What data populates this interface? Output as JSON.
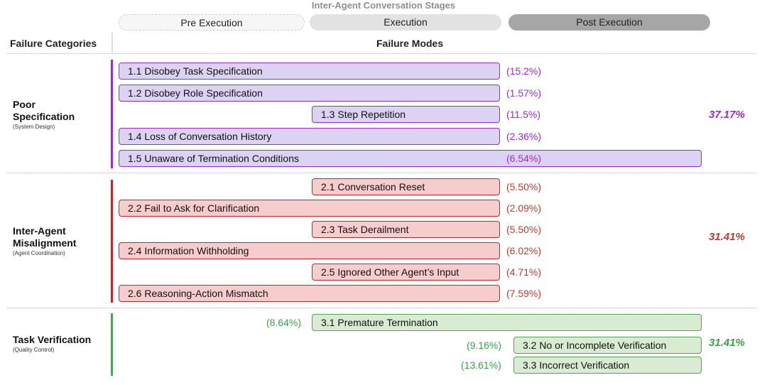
{
  "header": {
    "title": "Inter-Agent Conversation Stages",
    "stages": [
      "Pre Execution",
      "Execution",
      "Post Execution"
    ],
    "left_column": "Failure Categories",
    "right_column": "Failure Modes"
  },
  "colors": {
    "poor_specification": "#9a2bd6",
    "inter_agent_misalignment": "#c0272d",
    "task_verification": "#4ea35a"
  },
  "categories": [
    {
      "name_lines": [
        "Poor",
        "Specification"
      ],
      "subtitle": "(System Design)",
      "total": "37.17%",
      "modes": [
        {
          "label": "1.1 Disobey Task Specification",
          "percent": "(15.2%)"
        },
        {
          "label": "1.2 Disobey Role Specification",
          "percent": "(1.57%)"
        },
        {
          "label": "1.3 Step Repetition",
          "percent": "(11.5%)"
        },
        {
          "label": "1.4 Loss of Conversation History",
          "percent": "(2.36%)"
        },
        {
          "label": "1.5 Unaware of Termination Conditions",
          "percent": "(6.54%)"
        }
      ]
    },
    {
      "name_lines": [
        "Inter-Agent",
        "Misalignment"
      ],
      "subtitle": "(Agent Coordination)",
      "total": "31.41%",
      "modes": [
        {
          "label": "2.1 Conversation Reset",
          "percent": "(5.50%)"
        },
        {
          "label": "2.2 Fail to Ask for Clarification",
          "percent": "(2.09%)"
        },
        {
          "label": "2.3 Task Derailment",
          "percent": "(5.50%)"
        },
        {
          "label": "2.4 Information Withholding",
          "percent": "(6.02%)"
        },
        {
          "label": "2.5 Ignored Other Agent’s Input",
          "percent": "(4.71%)"
        },
        {
          "label": "2.6 Reasoning-Action Mismatch",
          "percent": "(7.59%)"
        }
      ]
    },
    {
      "name_lines": [
        "Task Verification"
      ],
      "subtitle": "(Quality Control)",
      "total": "31.41%",
      "modes": [
        {
          "label": "3.1  Premature Termination",
          "percent": "(8.64%)"
        },
        {
          "label": "3.2 No or Incomplete Verification",
          "percent": "(9.16%)"
        },
        {
          "label": "3.3 Incorrect Verification",
          "percent": "(13.61%)"
        }
      ]
    }
  ]
}
